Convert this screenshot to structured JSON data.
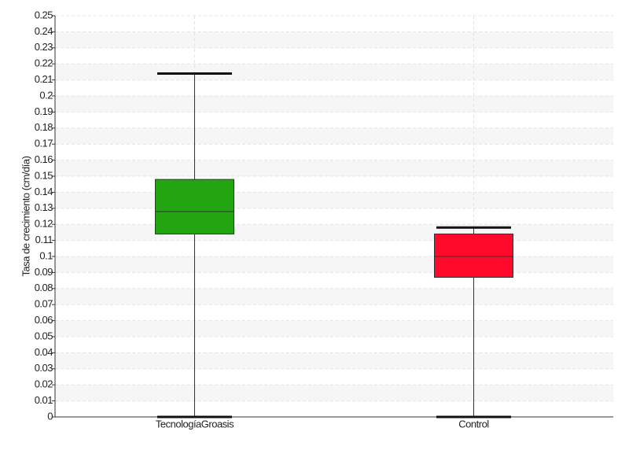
{
  "chart_data": {
    "type": "box",
    "ylabel": "Tasa de crecimiento (cm/día)",
    "categories": [
      "TecnologíaGroasis",
      "Control"
    ],
    "boxes": [
      {
        "min": 0,
        "q1": 0.114,
        "median": 0.128,
        "q3": 0.148,
        "max": 0.214,
        "color": "#22a511"
      },
      {
        "min": 0,
        "q1": 0.087,
        "median": 0.1,
        "q3": 0.114,
        "max": 0.118,
        "color": "#ff0a2a"
      }
    ],
    "ylim": [
      0,
      0.25
    ],
    "yticks": [
      0,
      0.01,
      0.02,
      0.03,
      0.04,
      0.05,
      0.06,
      0.07,
      0.08,
      0.09,
      0.1,
      0.11,
      0.12,
      0.13,
      0.14,
      0.15,
      0.16,
      0.17,
      0.18,
      0.19,
      0.2,
      0.21,
      0.22,
      0.23,
      0.24,
      0.25
    ],
    "grid": true
  }
}
